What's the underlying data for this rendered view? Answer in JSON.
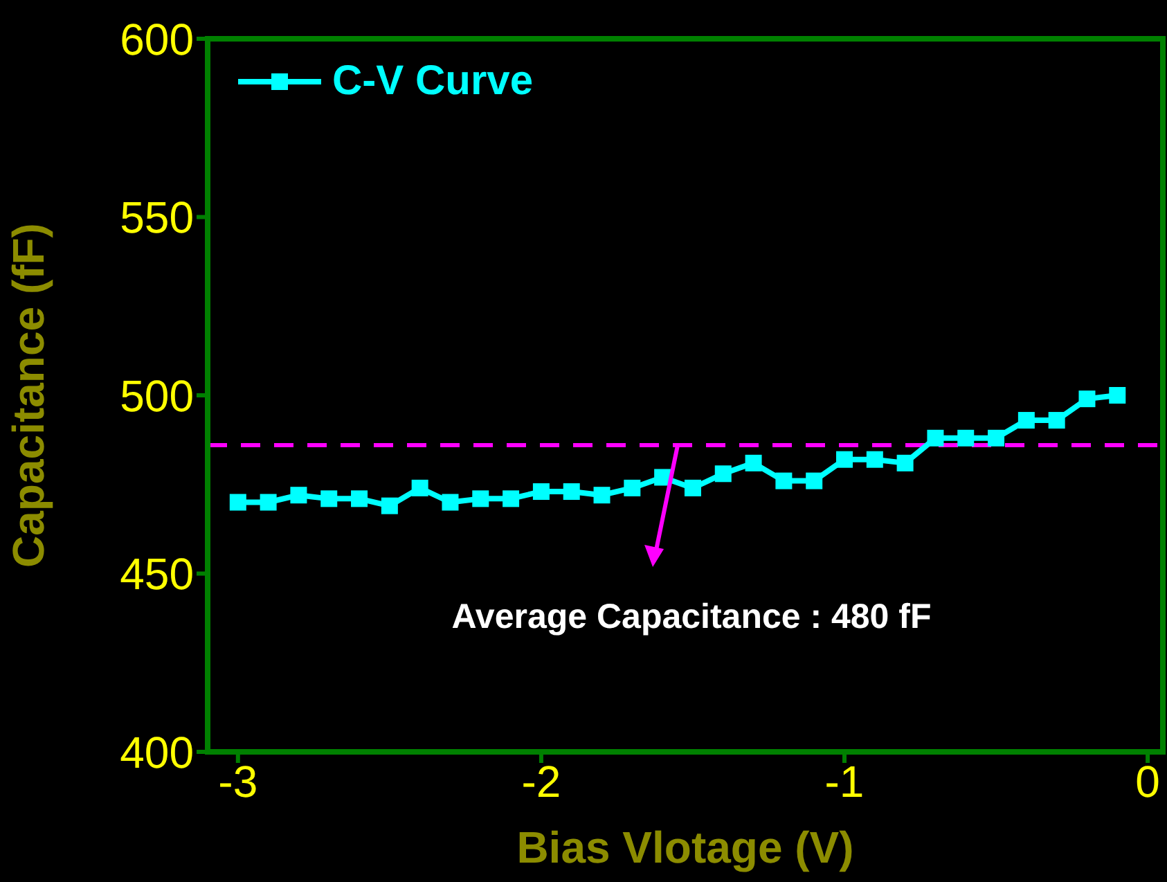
{
  "chart_data": {
    "type": "line",
    "xlabel": "Bias Vlotage (V)",
    "ylabel": "Capacitance (fF)",
    "x": [
      -3.0,
      -2.9,
      -2.8,
      -2.7,
      -2.6,
      -2.5,
      -2.4,
      -2.3,
      -2.2,
      -2.1,
      -2.0,
      -1.9,
      -1.8,
      -1.7,
      -1.6,
      -1.5,
      -1.4,
      -1.3,
      -1.2,
      -1.1,
      -1.0,
      -0.9,
      -0.8,
      -0.7,
      -0.6,
      -0.5,
      -0.4,
      -0.3,
      -0.2,
      -0.1
    ],
    "series": [
      {
        "name": "C-V Curve",
        "color": "#00ffff",
        "values": [
          470,
          470,
          472,
          471,
          471,
          469,
          474,
          470,
          471,
          471,
          473,
          473,
          472,
          474,
          477,
          474,
          478,
          481,
          476,
          476,
          482,
          482,
          481,
          488,
          488,
          488,
          493,
          493,
          499,
          500
        ]
      }
    ],
    "xlim": [
      -3.1,
      0.05
    ],
    "xticks": [
      -3,
      -2,
      -1,
      0
    ],
    "ylim": [
      400,
      600
    ],
    "yticks": [
      400,
      450,
      500,
      550,
      600
    ],
    "ref_lines": [
      {
        "axis": "y",
        "value": 486,
        "color": "#ff00ff",
        "line_style": "dashed"
      }
    ],
    "annotations": [
      {
        "text": "Average Capacitance : 480 fF",
        "x": -1.55,
        "y": 486
      }
    ],
    "legend": "top left",
    "marker": "square",
    "line_style": "solid",
    "grid": false
  }
}
